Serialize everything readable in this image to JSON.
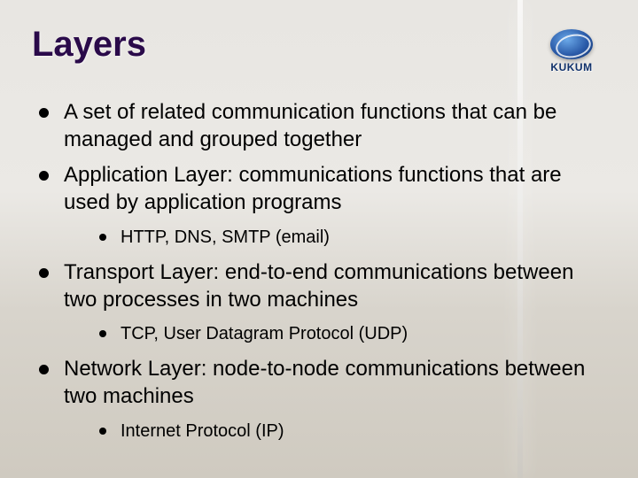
{
  "title": "Layers",
  "logo": {
    "text": "KUKUM"
  },
  "colors": {
    "title": "#2a0a4a",
    "bullet": "#000000",
    "body_text": "#000000",
    "logo_primary": "#10316b",
    "logo_highlight": "#6aa8e8",
    "background_top": "#e8e6e2",
    "background_bottom": "#cfcac0"
  },
  "typography": {
    "title_fontsize": 40,
    "body_fontsize": 24,
    "sub_fontsize": 20,
    "logo_fontsize": 12,
    "font_family": "Arial"
  },
  "bullets": [
    {
      "text": "A set of related communication functions that can be managed and grouped together",
      "sub": []
    },
    {
      "text": "Application Layer:  communications functions that are used by application programs",
      "sub": [
        {
          "text": "HTTP, DNS, SMTP (email)"
        }
      ]
    },
    {
      "text": "Transport Layer:  end-to-end communications between two processes in two machines",
      "sub": [
        {
          "text": "TCP, User Datagram Protocol (UDP)"
        }
      ]
    },
    {
      "text": "Network Layer:  node-to-node communications between two machines",
      "sub": [
        {
          "text": "Internet Protocol (IP)"
        }
      ]
    }
  ]
}
